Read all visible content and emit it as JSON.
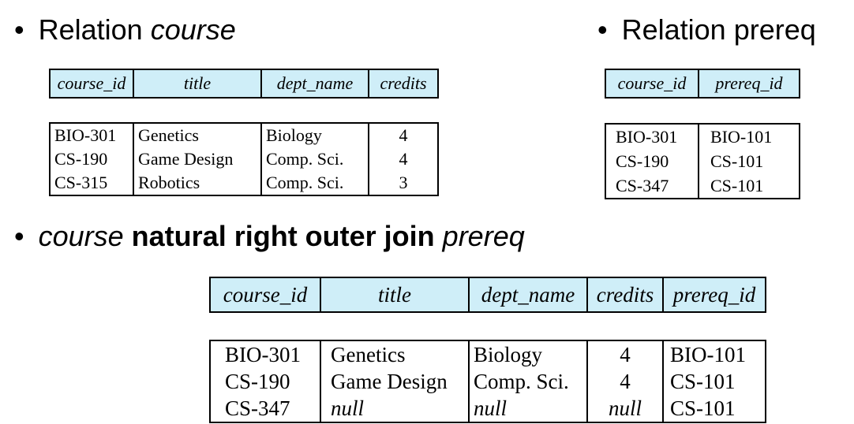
{
  "headings": {
    "course_relation": {
      "bullet": "•",
      "prefix": "Relation ",
      "name": "course"
    },
    "prereq_relation": {
      "bullet": "•",
      "text": "Relation prereq"
    },
    "join": {
      "bullet": "•",
      "left": "course",
      "op": " natural right outer join ",
      "right": "prereq"
    }
  },
  "course_table": {
    "headers": [
      "course_id",
      "title",
      "dept_name",
      "credits"
    ],
    "rows": [
      [
        "BIO-301",
        "Genetics",
        "Biology",
        "4"
      ],
      [
        "CS-190",
        "Game Design",
        "Comp. Sci.",
        "4"
      ],
      [
        "CS-315",
        "Robotics",
        "Comp. Sci.",
        "3"
      ]
    ],
    "header_color": "#cfeef8"
  },
  "prereq_table": {
    "headers": [
      "course_id",
      "prereq_id"
    ],
    "rows": [
      [
        "BIO-301",
        "BIO-101"
      ],
      [
        "CS-190",
        "CS-101"
      ],
      [
        "CS-347",
        "CS-101"
      ]
    ]
  },
  "join_table": {
    "headers": [
      "course_id",
      "title",
      "dept_name",
      "credits",
      "prereq_id"
    ],
    "rows": [
      [
        "BIO-301",
        "Genetics",
        "Biology",
        "4",
        "BIO-101"
      ],
      [
        "CS-190",
        "Game Design",
        "Comp. Sci.",
        "4",
        "CS-101"
      ],
      [
        "CS-347",
        "null",
        "null",
        "null",
        "CS-101"
      ]
    ]
  }
}
